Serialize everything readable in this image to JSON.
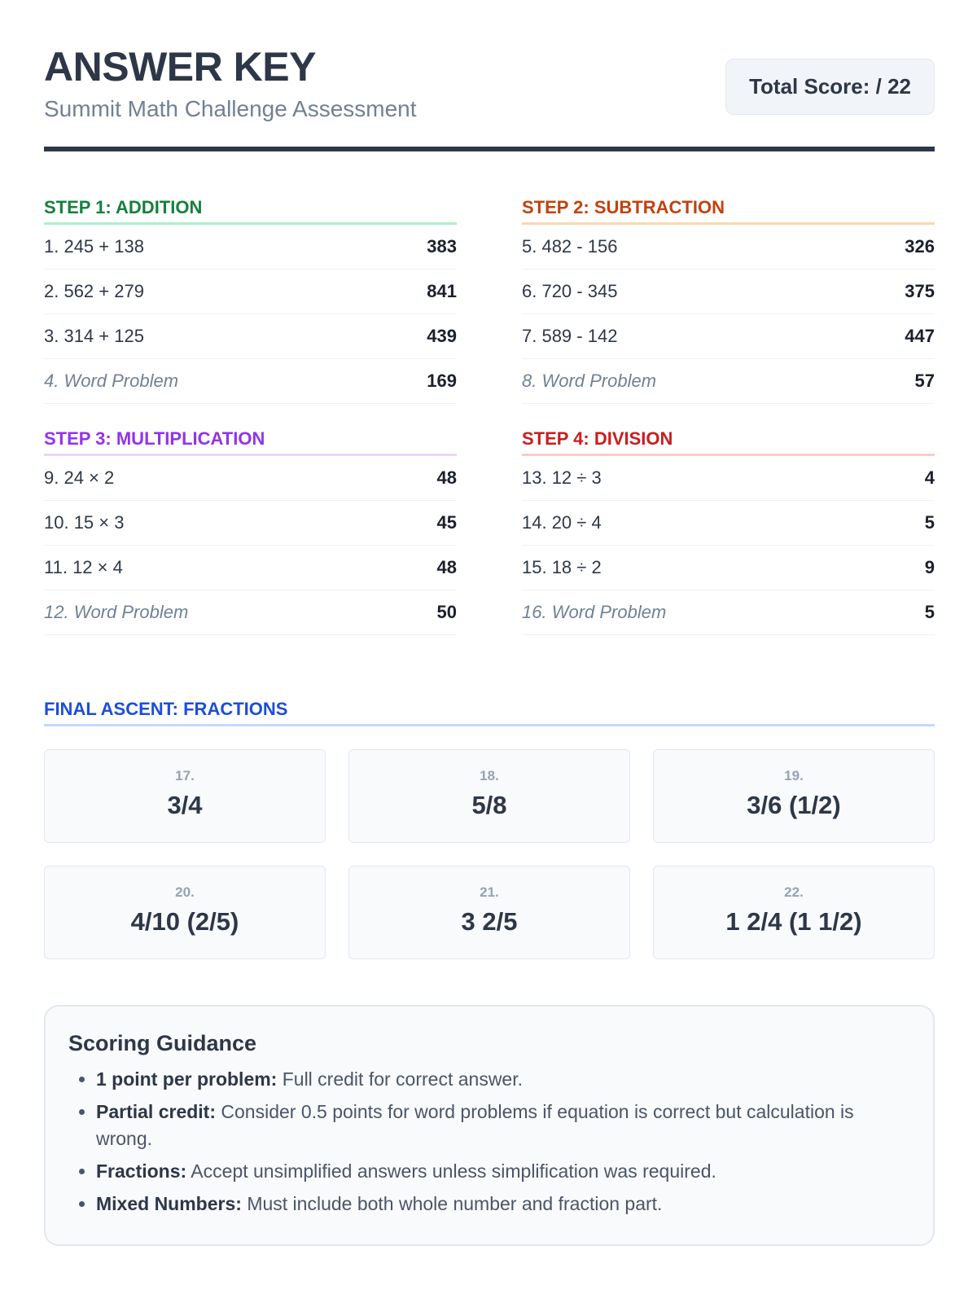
{
  "header": {
    "title": "ANSWER KEY",
    "subtitle": "Summit Math Challenge Assessment",
    "total_score": "Total Score: / 22"
  },
  "sections": [
    {
      "title": "STEP 1: ADDITION",
      "color": "#15803d",
      "line": "#a7f3c8",
      "rows": [
        {
          "q": "1. 245 + 138",
          "a": "383"
        },
        {
          "q": "2. 562 + 279",
          "a": "841"
        },
        {
          "q": "3. 314 + 125",
          "a": "439"
        },
        {
          "q": "4. Word Problem",
          "a": "169"
        }
      ]
    },
    {
      "title": "STEP 2: SUBTRACTION",
      "color": "#c2410c",
      "line": "#fed7aa",
      "rows": [
        {
          "q": "5. 482 - 156",
          "a": "326"
        },
        {
          "q": "6. 720 - 345",
          "a": "375"
        },
        {
          "q": "7. 589 - 142",
          "a": "447"
        },
        {
          "q": "8. Word Problem",
          "a": "57"
        }
      ]
    },
    {
      "title": "STEP 3: MULTIPLICATION",
      "color": "#9333ea",
      "line": "#e9d5ff",
      "rows": [
        {
          "q": "9. 24 × 2",
          "a": "48"
        },
        {
          "q": "10. 15 × 3",
          "a": "45"
        },
        {
          "q": "11. 12 × 4",
          "a": "48"
        },
        {
          "q": "12. Word Problem",
          "a": "50"
        }
      ]
    },
    {
      "title": "STEP 4: DIVISION",
      "color": "#c81e1e",
      "line": "#fecaca",
      "rows": [
        {
          "q": "13. 12 ÷ 3",
          "a": "4"
        },
        {
          "q": "14. 20 ÷ 4",
          "a": "5"
        },
        {
          "q": "15. 18 ÷ 2",
          "a": "9"
        },
        {
          "q": "16. Word Problem",
          "a": "5"
        }
      ]
    }
  ],
  "fractions": {
    "title": "FINAL ASCENT: FRACTIONS",
    "cards": [
      {
        "n": "17.",
        "v": "3/4"
      },
      {
        "n": "18.",
        "v": "5/8"
      },
      {
        "n": "19.",
        "v": "3/6 (1/2)"
      },
      {
        "n": "20.",
        "v": "4/10 (2/5)"
      },
      {
        "n": "21.",
        "v": "3 2/5"
      },
      {
        "n": "22.",
        "v": "1 2/4 (1 1/2)"
      }
    ]
  },
  "guidance": {
    "title": "Scoring Guidance",
    "items": [
      {
        "label": "1 point per problem:",
        "text": " Full credit for correct answer."
      },
      {
        "label": "Partial credit:",
        "text": " Consider 0.5 points for word problems if equation is correct but calculation is wrong."
      },
      {
        "label": "Fractions:",
        "text": " Accept unsimplified answers unless simplification was required."
      },
      {
        "label": "Mixed Numbers:",
        "text": " Must include both whole number and fraction part."
      }
    ]
  }
}
